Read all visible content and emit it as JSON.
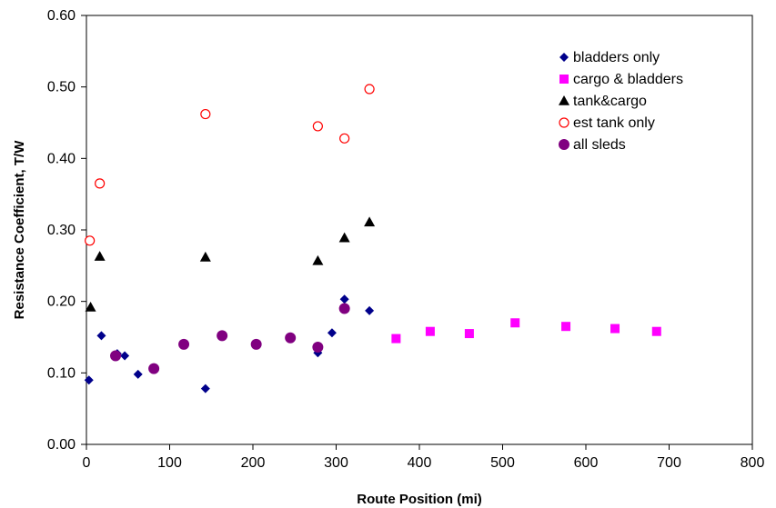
{
  "chart_data": {
    "type": "scatter",
    "xlabel": "Route Position (mi)",
    "ylabel": "Resistance Coefficient, T/W",
    "xlim": [
      0,
      800
    ],
    "ylim": [
      0,
      0.6
    ],
    "x_ticks": [
      "0",
      "100",
      "200",
      "300",
      "400",
      "500",
      "600",
      "700",
      "800"
    ],
    "y_ticks": [
      "0.00",
      "0.10",
      "0.20",
      "0.30",
      "0.40",
      "0.50",
      "0.60"
    ],
    "grid": false,
    "legend_position": "top-right",
    "series": [
      {
        "name": "bladders only",
        "marker": "diamond",
        "color": "#00008B",
        "points": [
          [
            3,
            0.09
          ],
          [
            18,
            0.152
          ],
          [
            37,
            0.127
          ],
          [
            46,
            0.124
          ],
          [
            62,
            0.098
          ],
          [
            143,
            0.078
          ],
          [
            278,
            0.128
          ],
          [
            295,
            0.156
          ],
          [
            310,
            0.203
          ],
          [
            340,
            0.187
          ]
        ]
      },
      {
        "name": "cargo & bladders",
        "marker": "square",
        "color": "#FF00FF",
        "points": [
          [
            372,
            0.148
          ],
          [
            413,
            0.158
          ],
          [
            460,
            0.155
          ],
          [
            515,
            0.17
          ],
          [
            576,
            0.165
          ],
          [
            635,
            0.162
          ],
          [
            685,
            0.158
          ]
        ]
      },
      {
        "name": "tank&cargo",
        "marker": "triangle",
        "color": "#000000",
        "points": [
          [
            5,
            0.192
          ],
          [
            16,
            0.263
          ],
          [
            143,
            0.262
          ],
          [
            278,
            0.257
          ],
          [
            310,
            0.289
          ],
          [
            340,
            0.311
          ]
        ]
      },
      {
        "name": "est tank only",
        "marker": "open-circle",
        "color": "#FF0000",
        "points": [
          [
            4,
            0.285
          ],
          [
            16,
            0.365
          ],
          [
            143,
            0.462
          ],
          [
            278,
            0.445
          ],
          [
            310,
            0.428
          ],
          [
            340,
            0.497
          ]
        ]
      },
      {
        "name": "all sleds",
        "marker": "circle",
        "color": "#800080",
        "points": [
          [
            35,
            0.124
          ],
          [
            81,
            0.106
          ],
          [
            117,
            0.14
          ],
          [
            163,
            0.152
          ],
          [
            204,
            0.14
          ],
          [
            245,
            0.149
          ],
          [
            278,
            0.136
          ],
          [
            310,
            0.19
          ]
        ]
      }
    ]
  }
}
